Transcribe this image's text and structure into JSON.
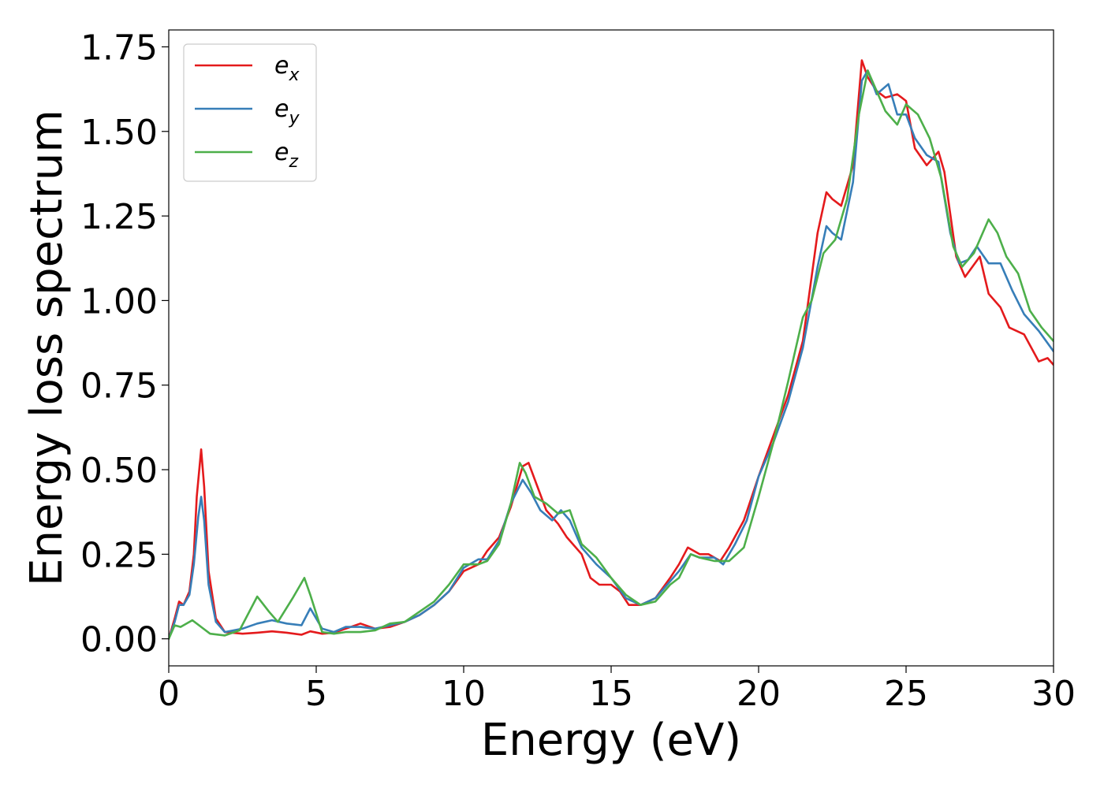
{
  "chart_data": {
    "type": "line",
    "xlabel": "Energy (eV)",
    "ylabel": "Energy loss spectrum",
    "xlim": [
      0,
      30
    ],
    "ylim": [
      -0.08,
      1.8
    ],
    "xticks": [
      0,
      5,
      10,
      15,
      20,
      25,
      30
    ],
    "xtick_labels": [
      "0",
      "5",
      "10",
      "15",
      "20",
      "25",
      "30"
    ],
    "yticks": [
      0.0,
      0.25,
      0.5,
      0.75,
      1.0,
      1.25,
      1.5,
      1.75
    ],
    "ytick_labels": [
      "0.00",
      "0.25",
      "0.50",
      "0.75",
      "1.00",
      "1.25",
      "1.50",
      "1.75"
    ],
    "grid": false,
    "legend_position": "top-left",
    "series": [
      {
        "name": "e_x",
        "legend_base": "e",
        "legend_sub": "x",
        "color": "#e41a1c",
        "points": [
          [
            0,
            0.0
          ],
          [
            0.2,
            0.06
          ],
          [
            0.35,
            0.11
          ],
          [
            0.5,
            0.1
          ],
          [
            0.7,
            0.14
          ],
          [
            0.85,
            0.25
          ],
          [
            0.95,
            0.42
          ],
          [
            1.1,
            0.56
          ],
          [
            1.2,
            0.45
          ],
          [
            1.35,
            0.2
          ],
          [
            1.6,
            0.06
          ],
          [
            1.9,
            0.02
          ],
          [
            2.5,
            0.015
          ],
          [
            3.0,
            0.018
          ],
          [
            3.5,
            0.022
          ],
          [
            4.0,
            0.018
          ],
          [
            4.5,
            0.012
          ],
          [
            4.8,
            0.022
          ],
          [
            5.2,
            0.015
          ],
          [
            5.6,
            0.018
          ],
          [
            6.0,
            0.03
          ],
          [
            6.5,
            0.045
          ],
          [
            7.0,
            0.03
          ],
          [
            7.5,
            0.035
          ],
          [
            8.0,
            0.05
          ],
          [
            8.5,
            0.07
          ],
          [
            9.0,
            0.1
          ],
          [
            9.5,
            0.14
          ],
          [
            10.0,
            0.2
          ],
          [
            10.5,
            0.22
          ],
          [
            10.8,
            0.26
          ],
          [
            11.2,
            0.3
          ],
          [
            11.6,
            0.39
          ],
          [
            12.0,
            0.51
          ],
          [
            12.2,
            0.52
          ],
          [
            12.5,
            0.45
          ],
          [
            12.8,
            0.38
          ],
          [
            13.2,
            0.34
          ],
          [
            13.5,
            0.3
          ],
          [
            14.0,
            0.25
          ],
          [
            14.3,
            0.18
          ],
          [
            14.6,
            0.16
          ],
          [
            15.0,
            0.16
          ],
          [
            15.3,
            0.14
          ],
          [
            15.6,
            0.1
          ],
          [
            16.0,
            0.1
          ],
          [
            16.5,
            0.12
          ],
          [
            17.0,
            0.18
          ],
          [
            17.3,
            0.22
          ],
          [
            17.6,
            0.27
          ],
          [
            18.0,
            0.25
          ],
          [
            18.3,
            0.25
          ],
          [
            18.7,
            0.23
          ],
          [
            19.0,
            0.27
          ],
          [
            19.5,
            0.35
          ],
          [
            20.0,
            0.48
          ],
          [
            20.5,
            0.6
          ],
          [
            21.0,
            0.72
          ],
          [
            21.5,
            0.88
          ],
          [
            22.0,
            1.2
          ],
          [
            22.3,
            1.32
          ],
          [
            22.5,
            1.3
          ],
          [
            22.8,
            1.28
          ],
          [
            23.2,
            1.4
          ],
          [
            23.5,
            1.71
          ],
          [
            23.7,
            1.66
          ],
          [
            24.0,
            1.62
          ],
          [
            24.3,
            1.6
          ],
          [
            24.7,
            1.61
          ],
          [
            25.0,
            1.59
          ],
          [
            25.3,
            1.45
          ],
          [
            25.7,
            1.4
          ],
          [
            26.1,
            1.44
          ],
          [
            26.3,
            1.38
          ],
          [
            26.7,
            1.13
          ],
          [
            27.0,
            1.07
          ],
          [
            27.5,
            1.13
          ],
          [
            27.8,
            1.02
          ],
          [
            28.2,
            0.98
          ],
          [
            28.5,
            0.92
          ],
          [
            29.0,
            0.9
          ],
          [
            29.5,
            0.82
          ],
          [
            29.8,
            0.83
          ],
          [
            30.0,
            0.81
          ]
        ]
      },
      {
        "name": "e_y",
        "legend_base": "e",
        "legend_sub": "y",
        "color": "#377eb8",
        "points": [
          [
            0,
            0.0
          ],
          [
            0.2,
            0.05
          ],
          [
            0.35,
            0.1
          ],
          [
            0.5,
            0.1
          ],
          [
            0.7,
            0.13
          ],
          [
            0.85,
            0.22
          ],
          [
            1.0,
            0.36
          ],
          [
            1.1,
            0.42
          ],
          [
            1.2,
            0.35
          ],
          [
            1.35,
            0.16
          ],
          [
            1.6,
            0.05
          ],
          [
            1.9,
            0.02
          ],
          [
            2.5,
            0.03
          ],
          [
            3.0,
            0.045
          ],
          [
            3.5,
            0.055
          ],
          [
            4.0,
            0.045
          ],
          [
            4.5,
            0.04
          ],
          [
            4.8,
            0.09
          ],
          [
            5.2,
            0.03
          ],
          [
            5.6,
            0.02
          ],
          [
            6.0,
            0.035
          ],
          [
            6.5,
            0.035
          ],
          [
            7.0,
            0.03
          ],
          [
            7.5,
            0.04
          ],
          [
            8.0,
            0.05
          ],
          [
            8.5,
            0.07
          ],
          [
            9.0,
            0.1
          ],
          [
            9.5,
            0.14
          ],
          [
            10.0,
            0.21
          ],
          [
            10.5,
            0.235
          ],
          [
            10.8,
            0.235
          ],
          [
            11.2,
            0.29
          ],
          [
            11.6,
            0.4
          ],
          [
            12.0,
            0.47
          ],
          [
            12.3,
            0.43
          ],
          [
            12.6,
            0.38
          ],
          [
            13.0,
            0.35
          ],
          [
            13.3,
            0.38
          ],
          [
            13.6,
            0.35
          ],
          [
            14.0,
            0.27
          ],
          [
            14.5,
            0.22
          ],
          [
            15.0,
            0.18
          ],
          [
            15.5,
            0.12
          ],
          [
            16.0,
            0.1
          ],
          [
            16.5,
            0.12
          ],
          [
            17.0,
            0.17
          ],
          [
            17.3,
            0.2
          ],
          [
            17.7,
            0.25
          ],
          [
            18.0,
            0.24
          ],
          [
            18.5,
            0.24
          ],
          [
            18.8,
            0.22
          ],
          [
            19.2,
            0.28
          ],
          [
            19.6,
            0.35
          ],
          [
            20.0,
            0.48
          ],
          [
            20.5,
            0.58
          ],
          [
            21.0,
            0.7
          ],
          [
            21.5,
            0.86
          ],
          [
            22.0,
            1.1
          ],
          [
            22.3,
            1.22
          ],
          [
            22.5,
            1.2
          ],
          [
            22.8,
            1.18
          ],
          [
            23.2,
            1.35
          ],
          [
            23.5,
            1.65
          ],
          [
            23.7,
            1.68
          ],
          [
            24.0,
            1.61
          ],
          [
            24.4,
            1.64
          ],
          [
            24.7,
            1.55
          ],
          [
            25.0,
            1.55
          ],
          [
            25.3,
            1.48
          ],
          [
            25.7,
            1.43
          ],
          [
            26.1,
            1.41
          ],
          [
            26.5,
            1.2
          ],
          [
            26.8,
            1.11
          ],
          [
            27.1,
            1.12
          ],
          [
            27.4,
            1.16
          ],
          [
            27.8,
            1.11
          ],
          [
            28.2,
            1.11
          ],
          [
            28.6,
            1.03
          ],
          [
            29.0,
            0.96
          ],
          [
            29.5,
            0.91
          ],
          [
            30.0,
            0.85
          ]
        ]
      },
      {
        "name": "e_z",
        "legend_base": "e",
        "legend_sub": "z",
        "color": "#4daf4a",
        "points": [
          [
            0,
            0.0
          ],
          [
            0.2,
            0.04
          ],
          [
            0.4,
            0.035
          ],
          [
            0.8,
            0.055
          ],
          [
            1.1,
            0.035
          ],
          [
            1.4,
            0.015
          ],
          [
            1.9,
            0.01
          ],
          [
            2.4,
            0.025
          ],
          [
            3.0,
            0.125
          ],
          [
            3.4,
            0.08
          ],
          [
            3.7,
            0.05
          ],
          [
            4.2,
            0.12
          ],
          [
            4.6,
            0.18
          ],
          [
            4.8,
            0.13
          ],
          [
            5.2,
            0.02
          ],
          [
            5.6,
            0.015
          ],
          [
            6.0,
            0.02
          ],
          [
            6.5,
            0.02
          ],
          [
            7.0,
            0.025
          ],
          [
            7.5,
            0.045
          ],
          [
            8.0,
            0.05
          ],
          [
            8.5,
            0.08
          ],
          [
            9.0,
            0.11
          ],
          [
            9.5,
            0.16
          ],
          [
            10.0,
            0.22
          ],
          [
            10.5,
            0.22
          ],
          [
            10.8,
            0.23
          ],
          [
            11.2,
            0.28
          ],
          [
            11.6,
            0.4
          ],
          [
            11.9,
            0.52
          ],
          [
            12.1,
            0.49
          ],
          [
            12.4,
            0.42
          ],
          [
            12.8,
            0.4
          ],
          [
            13.2,
            0.37
          ],
          [
            13.6,
            0.38
          ],
          [
            14.0,
            0.28
          ],
          [
            14.5,
            0.24
          ],
          [
            15.0,
            0.18
          ],
          [
            15.5,
            0.13
          ],
          [
            16.0,
            0.1
          ],
          [
            16.5,
            0.11
          ],
          [
            17.0,
            0.16
          ],
          [
            17.3,
            0.18
          ],
          [
            17.7,
            0.25
          ],
          [
            18.0,
            0.24
          ],
          [
            18.5,
            0.23
          ],
          [
            19.0,
            0.23
          ],
          [
            19.5,
            0.27
          ],
          [
            20.0,
            0.42
          ],
          [
            20.5,
            0.58
          ],
          [
            21.0,
            0.76
          ],
          [
            21.5,
            0.95
          ],
          [
            21.8,
            1.0
          ],
          [
            22.2,
            1.14
          ],
          [
            22.6,
            1.18
          ],
          [
            23.0,
            1.3
          ],
          [
            23.4,
            1.55
          ],
          [
            23.7,
            1.68
          ],
          [
            24.0,
            1.62
          ],
          [
            24.3,
            1.56
          ],
          [
            24.7,
            1.52
          ],
          [
            25.0,
            1.58
          ],
          [
            25.4,
            1.55
          ],
          [
            25.8,
            1.48
          ],
          [
            26.2,
            1.36
          ],
          [
            26.6,
            1.16
          ],
          [
            26.9,
            1.1
          ],
          [
            27.3,
            1.14
          ],
          [
            27.8,
            1.24
          ],
          [
            28.1,
            1.2
          ],
          [
            28.4,
            1.13
          ],
          [
            28.8,
            1.08
          ],
          [
            29.2,
            0.97
          ],
          [
            29.6,
            0.92
          ],
          [
            30.0,
            0.88
          ]
        ]
      }
    ]
  }
}
